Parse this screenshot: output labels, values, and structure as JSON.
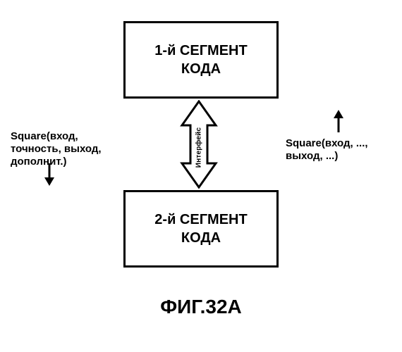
{
  "boxes": {
    "segment1": "1-й СЕГМЕНТ\nКОДА",
    "segment2": "2-й СЕГМЕНТ\nКОДА"
  },
  "labels": {
    "left": "Square(вход, точность, выход, дополнит.)",
    "right": "Square(вход, ..., выход, ...)",
    "interface": "Интерфейс"
  },
  "title": "ФИГ.32А",
  "style": {
    "type": "flowchart",
    "background_color": "#ffffff",
    "border_color": "#000000",
    "text_color": "#000000",
    "border_width": 3,
    "box_font_size": 20,
    "label_font_size": 15,
    "title_font_size": 28,
    "interface_font_size": 10,
    "font_weight": "bold",
    "double_arrow": {
      "fill": "#ffffff",
      "stroke": "#000000",
      "stroke_width": 3
    },
    "small_arrows": {
      "stroke": "#000000",
      "stroke_width": 3
    }
  }
}
